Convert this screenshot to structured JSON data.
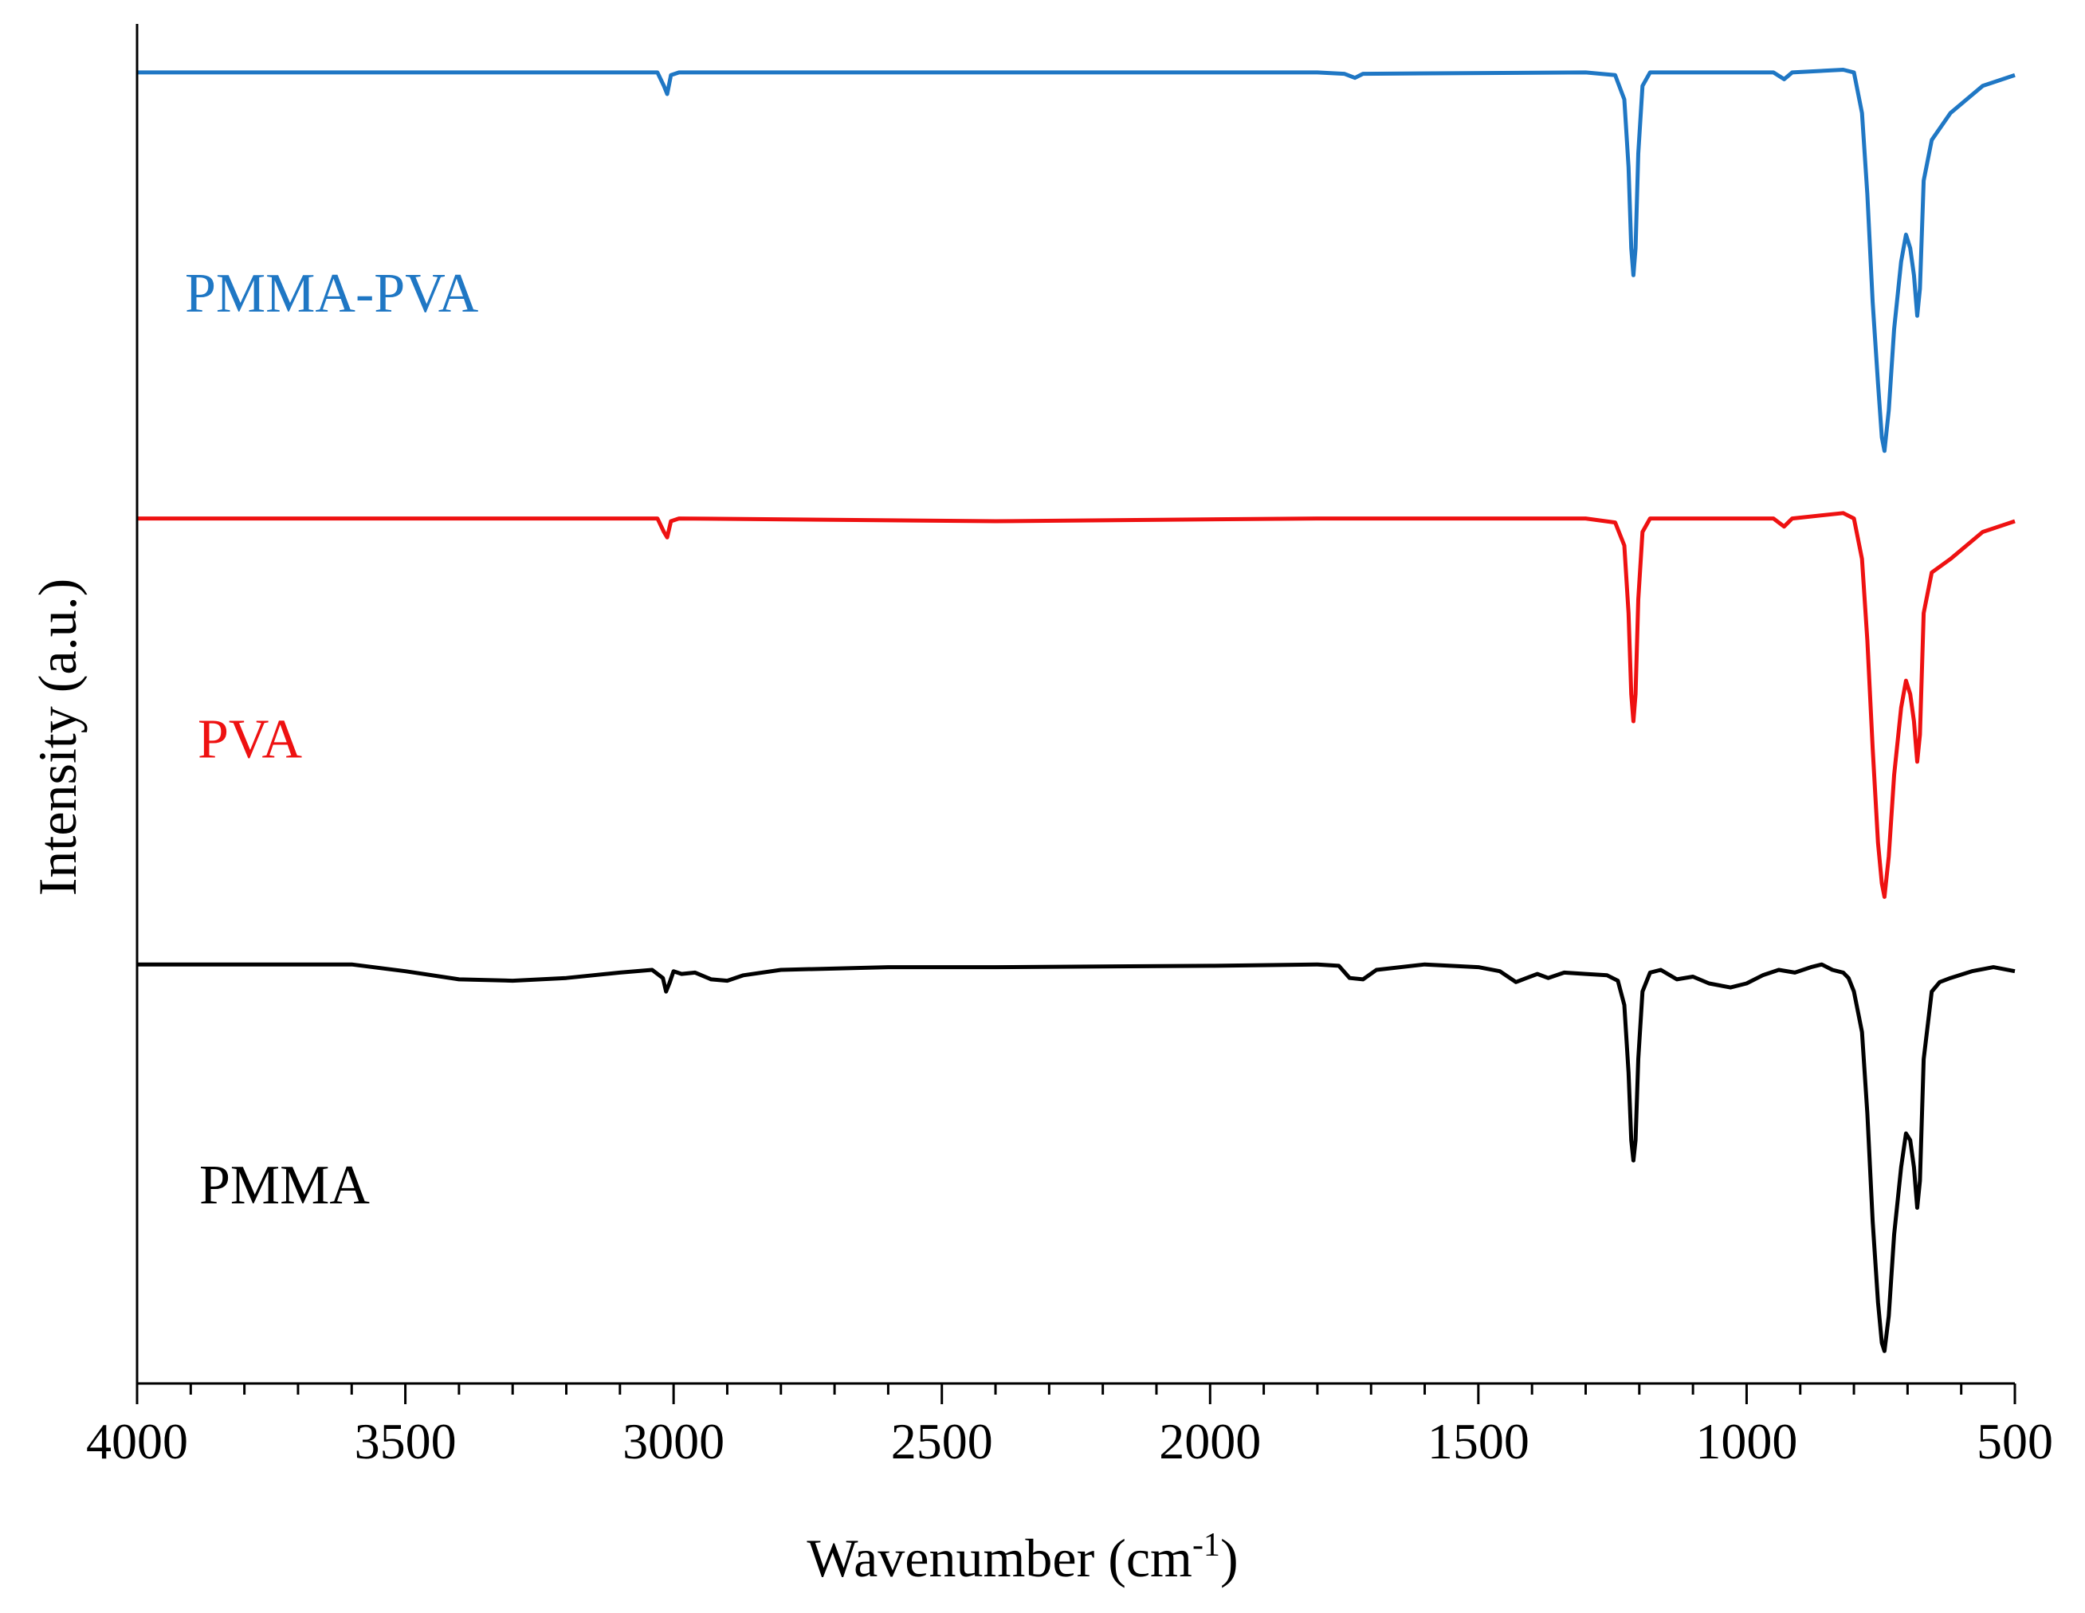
{
  "chart_data": {
    "type": "line",
    "title": "",
    "xlabel": "Wavenumber (cm",
    "xlabel_sup": "-1",
    "xlabel_end": ")",
    "ylabel": "Intensity (a.u.)",
    "xlim": [
      4000,
      500
    ],
    "x_reversed": true,
    "x_ticks": [
      4000,
      3500,
      3000,
      2500,
      2000,
      1500,
      1000,
      500
    ],
    "x_tick_labels": [
      "4000",
      "3500",
      "3000",
      "2500",
      "2000",
      "1500",
      "1000",
      "500"
    ],
    "x_minor_step": 100,
    "y_ticks_shown": false,
    "ylim": [
      0,
      100
    ],
    "legend": "inline labels on the left of each trace",
    "series": [
      {
        "name": "PMMA-PVA",
        "label": "PMMA-PVA",
        "color": "#1F77C4",
        "points": [
          [
            4000,
            97
          ],
          [
            3100,
            97
          ],
          [
            3030,
            97
          ],
          [
            3018,
            96
          ],
          [
            3012,
            95.4
          ],
          [
            3005,
            96.8
          ],
          [
            2990,
            97
          ],
          [
            2400,
            97
          ],
          [
            1800,
            97
          ],
          [
            1750,
            96.9
          ],
          [
            1730,
            96.6
          ],
          [
            1715,
            96.9
          ],
          [
            1300,
            97
          ],
          [
            1245,
            96.8
          ],
          [
            1228,
            95
          ],
          [
            1220,
            90
          ],
          [
            1215,
            84
          ],
          [
            1211,
            82
          ],
          [
            1207,
            84
          ],
          [
            1202,
            91
          ],
          [
            1194,
            96
          ],
          [
            1180,
            97
          ],
          [
            950,
            97
          ],
          [
            930,
            96.5
          ],
          [
            915,
            97
          ],
          [
            820,
            97.2
          ],
          [
            800,
            97
          ],
          [
            785,
            94
          ],
          [
            775,
            88
          ],
          [
            765,
            80
          ],
          [
            755,
            74
          ],
          [
            748,
            70
          ],
          [
            743,
            69
          ],
          [
            735,
            72
          ],
          [
            725,
            78
          ],
          [
            712,
            83
          ],
          [
            703,
            85
          ],
          [
            695,
            84
          ],
          [
            688,
            82
          ],
          [
            682,
            79
          ],
          [
            677,
            81
          ],
          [
            670,
            89
          ],
          [
            655,
            92
          ],
          [
            620,
            94
          ],
          [
            560,
            96
          ],
          [
            500,
            96.8
          ]
        ]
      },
      {
        "name": "PVA",
        "label": "PVA",
        "color": "#EE1111",
        "points": [
          [
            4000,
            64
          ],
          [
            3100,
            64
          ],
          [
            3030,
            64
          ],
          [
            3018,
            63
          ],
          [
            3012,
            62.6
          ],
          [
            3005,
            63.8
          ],
          [
            2990,
            64
          ],
          [
            2400,
            63.8
          ],
          [
            1800,
            64
          ],
          [
            1430,
            64
          ],
          [
            1300,
            64
          ],
          [
            1245,
            63.7
          ],
          [
            1228,
            62
          ],
          [
            1220,
            57
          ],
          [
            1215,
            51
          ],
          [
            1211,
            49
          ],
          [
            1207,
            51
          ],
          [
            1202,
            58
          ],
          [
            1194,
            63
          ],
          [
            1180,
            64
          ],
          [
            950,
            64
          ],
          [
            930,
            63.4
          ],
          [
            915,
            64
          ],
          [
            820,
            64.4
          ],
          [
            800,
            64
          ],
          [
            785,
            61
          ],
          [
            775,
            55
          ],
          [
            765,
            47
          ],
          [
            755,
            40
          ],
          [
            748,
            37
          ],
          [
            743,
            36
          ],
          [
            735,
            39
          ],
          [
            725,
            45
          ],
          [
            712,
            50
          ],
          [
            703,
            52
          ],
          [
            695,
            51
          ],
          [
            688,
            49
          ],
          [
            682,
            46
          ],
          [
            677,
            48
          ],
          [
            670,
            57
          ],
          [
            655,
            60
          ],
          [
            620,
            61
          ],
          [
            560,
            63
          ],
          [
            500,
            63.8
          ]
        ]
      },
      {
        "name": "PMMA",
        "label": "PMMA",
        "color": "#000000",
        "points": [
          [
            4000,
            31
          ],
          [
            3700,
            31
          ],
          [
            3600,
            31
          ],
          [
            3500,
            30.5
          ],
          [
            3400,
            29.9
          ],
          [
            3300,
            29.8
          ],
          [
            3200,
            30
          ],
          [
            3100,
            30.4
          ],
          [
            3040,
            30.6
          ],
          [
            3020,
            30
          ],
          [
            3014,
            29
          ],
          [
            3008,
            29.6
          ],
          [
            3000,
            30.5
          ],
          [
            2985,
            30.3
          ],
          [
            2960,
            30.4
          ],
          [
            2930,
            29.9
          ],
          [
            2900,
            29.8
          ],
          [
            2870,
            30.2
          ],
          [
            2800,
            30.6
          ],
          [
            2600,
            30.8
          ],
          [
            2400,
            30.8
          ],
          [
            2000,
            30.9
          ],
          [
            1800,
            31
          ],
          [
            1760,
            30.9
          ],
          [
            1740,
            30
          ],
          [
            1715,
            29.9
          ],
          [
            1690,
            30.6
          ],
          [
            1600,
            31
          ],
          [
            1500,
            30.8
          ],
          [
            1460,
            30.5
          ],
          [
            1430,
            29.7
          ],
          [
            1410,
            30
          ],
          [
            1390,
            30.3
          ],
          [
            1370,
            30
          ],
          [
            1340,
            30.4
          ],
          [
            1300,
            30.3
          ],
          [
            1260,
            30.2
          ],
          [
            1240,
            29.8
          ],
          [
            1228,
            28
          ],
          [
            1220,
            23
          ],
          [
            1215,
            18
          ],
          [
            1211,
            16.5
          ],
          [
            1207,
            18
          ],
          [
            1202,
            24
          ],
          [
            1194,
            29
          ],
          [
            1180,
            30.4
          ],
          [
            1160,
            30.6
          ],
          [
            1130,
            29.9
          ],
          [
            1100,
            30.1
          ],
          [
            1070,
            29.6
          ],
          [
            1030,
            29.3
          ],
          [
            1000,
            29.6
          ],
          [
            970,
            30.2
          ],
          [
            940,
            30.6
          ],
          [
            910,
            30.4
          ],
          [
            880,
            30.8
          ],
          [
            860,
            31
          ],
          [
            840,
            30.6
          ],
          [
            820,
            30.4
          ],
          [
            810,
            30
          ],
          [
            800,
            29
          ],
          [
            785,
            26
          ],
          [
            775,
            20
          ],
          [
            765,
            12
          ],
          [
            755,
            6
          ],
          [
            748,
            3
          ],
          [
            743,
            2.4
          ],
          [
            735,
            5
          ],
          [
            725,
            11
          ],
          [
            712,
            16
          ],
          [
            703,
            18.5
          ],
          [
            695,
            18
          ],
          [
            688,
            16
          ],
          [
            682,
            13
          ],
          [
            677,
            15
          ],
          [
            670,
            24
          ],
          [
            655,
            29
          ],
          [
            640,
            29.7
          ],
          [
            620,
            30
          ],
          [
            580,
            30.5
          ],
          [
            540,
            30.8
          ],
          [
            500,
            30.5
          ]
        ]
      }
    ]
  }
}
